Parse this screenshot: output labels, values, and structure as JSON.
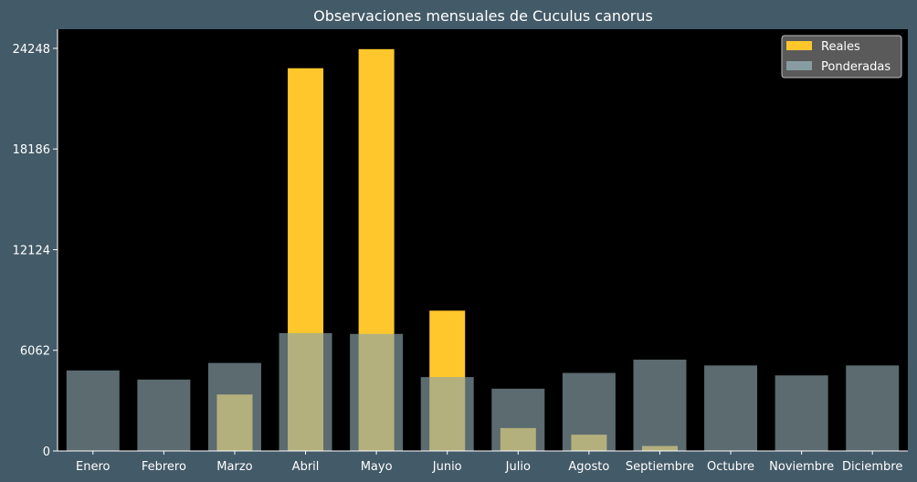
{
  "colors": {
    "background": "#435a68",
    "plot_background": "#000000",
    "text": "#ffffff",
    "reales": "#ffc72c",
    "ponderadas": "#8ca4aa",
    "ponderadas_opacity": 0.65,
    "legend_background": "#5a5a5a"
  },
  "chart_data": {
    "type": "bar",
    "title": "Observaciones mensuales de Cuculus canorus",
    "xlabel": "",
    "ylabel": "",
    "categories": [
      "Enero",
      "Febrero",
      "Marzo",
      "Abril",
      "Mayo",
      "Junio",
      "Julio",
      "Agosto",
      "Septiembre",
      "Octubre",
      "Noviembre",
      "Diciembre"
    ],
    "series": [
      {
        "name": "Reales",
        "values": [
          0,
          0,
          3400,
          23050,
          24200,
          8450,
          1380,
          980,
          300,
          0,
          0,
          0
        ]
      },
      {
        "name": "Ponderadas",
        "values": [
          4850,
          4300,
          5300,
          7100,
          7050,
          4450,
          3750,
          4700,
          5500,
          5150,
          4550,
          5150
        ]
      }
    ],
    "yticks": [
      0,
      6062,
      12124,
      18186,
      24248
    ],
    "ylim": [
      0,
      25400
    ],
    "grid": false,
    "legend_position": "top-right"
  }
}
